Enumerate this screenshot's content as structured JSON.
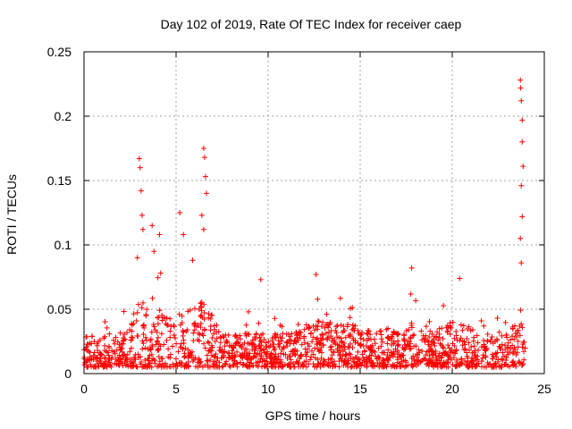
{
  "chart_data": {
    "type": "scatter",
    "title": "Day 102 of 2019, Rate Of TEC Index for receiver caep",
    "xlabel": "GPS time / hours",
    "ylabel": "ROTI / TECUs",
    "xlim": [
      0,
      25
    ],
    "ylim": [
      0,
      0.25
    ],
    "xticks": [
      0,
      5,
      10,
      15,
      20,
      25
    ],
    "xtick_labels": [
      "0",
      "5",
      "10",
      "15",
      "20",
      "25"
    ],
    "yticks": [
      0,
      0.05,
      0.1,
      0.15,
      0.2,
      0.25
    ],
    "ytick_labels": [
      "0",
      "0.05",
      "0.1",
      "0.15",
      "0.2",
      "0.25"
    ],
    "grid": true,
    "marker": "+",
    "color": "#ff0000",
    "series": [
      {
        "name": "ROTI",
        "note": "dense band of points 0.005-0.04 TECU/s across 0-24 h",
        "baseline_range": [
          0.005,
          0.04
        ],
        "peaks": [
          {
            "x": 3.0,
            "y": 0.167
          },
          {
            "x": 3.05,
            "y": 0.16
          },
          {
            "x": 3.1,
            "y": 0.142
          },
          {
            "x": 3.15,
            "y": 0.123
          },
          {
            "x": 3.2,
            "y": 0.112
          },
          {
            "x": 2.9,
            "y": 0.09
          },
          {
            "x": 3.7,
            "y": 0.115
          },
          {
            "x": 3.8,
            "y": 0.095
          },
          {
            "x": 4.1,
            "y": 0.108
          },
          {
            "x": 5.2,
            "y": 0.125
          },
          {
            "x": 5.4,
            "y": 0.108
          },
          {
            "x": 5.9,
            "y": 0.088
          },
          {
            "x": 6.4,
            "y": 0.123
          },
          {
            "x": 6.5,
            "y": 0.175
          },
          {
            "x": 6.55,
            "y": 0.168
          },
          {
            "x": 6.6,
            "y": 0.153
          },
          {
            "x": 6.65,
            "y": 0.14
          },
          {
            "x": 6.5,
            "y": 0.112
          },
          {
            "x": 9.6,
            "y": 0.073
          },
          {
            "x": 12.6,
            "y": 0.077
          },
          {
            "x": 17.8,
            "y": 0.082
          },
          {
            "x": 20.4,
            "y": 0.074
          },
          {
            "x": 23.7,
            "y": 0.228
          },
          {
            "x": 23.72,
            "y": 0.222
          },
          {
            "x": 23.75,
            "y": 0.212
          },
          {
            "x": 23.8,
            "y": 0.197
          },
          {
            "x": 23.8,
            "y": 0.18
          },
          {
            "x": 23.85,
            "y": 0.161
          },
          {
            "x": 23.75,
            "y": 0.146
          },
          {
            "x": 23.8,
            "y": 0.122
          },
          {
            "x": 23.7,
            "y": 0.105
          },
          {
            "x": 23.75,
            "y": 0.086
          }
        ]
      }
    ]
  }
}
